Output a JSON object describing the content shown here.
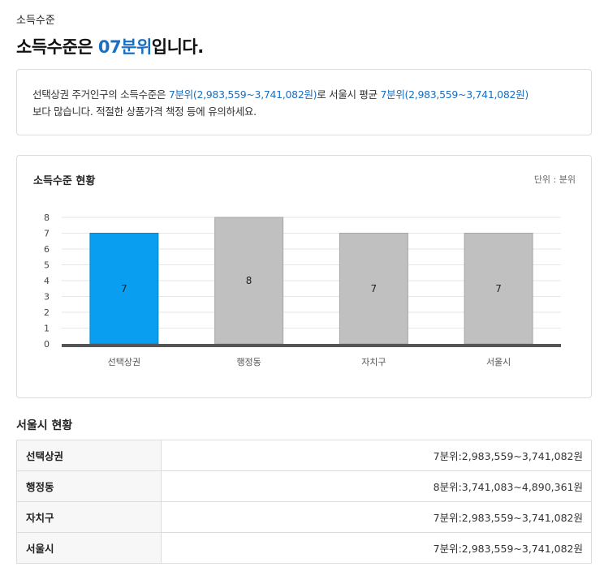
{
  "header": {
    "breadcrumb": "소득수준",
    "title_prefix": "소득수준은 ",
    "title_highlight": "07분위",
    "title_suffix": "입니다."
  },
  "summary": {
    "part1": "선택상권 주거인구의 소득수준은 ",
    "value1": "7분위(2,983,559~3,741,082원)",
    "part2": "로 서울시 평균 ",
    "value2": "7분위(2,983,559~3,741,082원)",
    "part3": "보다 많습니다. 적절한 상품가격 책정 등에 유의하세요."
  },
  "chart": {
    "title": "소득수준 현황",
    "unit": "단위 : 분위"
  },
  "chart_data": {
    "type": "bar",
    "categories": [
      "선택상권",
      "행정동",
      "자치구",
      "서울시"
    ],
    "values": [
      7,
      8,
      7,
      7
    ],
    "ylim": [
      0,
      8
    ],
    "yticks": [
      0,
      1,
      2,
      3,
      4,
      5,
      6,
      7,
      8
    ],
    "grid": true,
    "colors": {
      "highlight": "#0a9ef0",
      "default": "#c0c0c0",
      "baseline": "#555555"
    }
  },
  "seoul_stats": {
    "title": "서울시 현황",
    "rows": [
      {
        "label": "선택상권",
        "value": "7분위:2,983,559~3,741,082원"
      },
      {
        "label": "행정동",
        "value": "8분위:3,741,083~4,890,361원"
      },
      {
        "label": "자치구",
        "value": "7분위:2,983,559~3,741,082원"
      },
      {
        "label": "서울시",
        "value": "7분위:2,983,559~3,741,082원"
      }
    ]
  }
}
